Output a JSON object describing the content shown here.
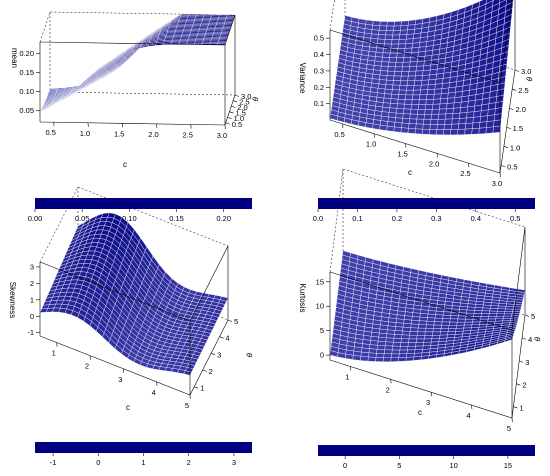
{
  "chart_data": [
    {
      "type": "surface3d",
      "zlabel": "mean",
      "xlabel": "c",
      "ylabel": "θ",
      "x_ticks": [
        "0.5",
        "1.0",
        "1.5",
        "2.0",
        "2.5",
        "3.0"
      ],
      "y_ticks": [
        "0.5",
        "1.0",
        "1.5",
        "2.0",
        "2.5",
        "3.0"
      ],
      "z_ticks": [
        "0.05",
        "0.10",
        "0.15",
        "0.20"
      ],
      "xlim": [
        0.3,
        3.0
      ],
      "ylim": [
        0.3,
        3.0
      ],
      "zlim": [
        0.02,
        0.23
      ],
      "colorbar_ticks": [
        "0.00",
        "0.05",
        "0.10",
        "0.15",
        "0.20"
      ],
      "colorbar_range": [
        0,
        0.23
      ],
      "color": "#000080"
    },
    {
      "type": "surface3d",
      "zlabel": "Variance",
      "xlabel": "c",
      "ylabel": "θ",
      "x_ticks": [
        "0.5",
        "1.0",
        "1.5",
        "2.0",
        "2.5",
        "3.0"
      ],
      "y_ticks": [
        "0.5",
        "1.0",
        "1.5",
        "2.0",
        "2.5",
        "3.0"
      ],
      "z_ticks": [
        "0.1",
        "0.2",
        "0.3",
        "0.4",
        "0.5"
      ],
      "xlim": [
        0.3,
        3.0
      ],
      "ylim": [
        0.3,
        3.0
      ],
      "zlim": [
        0.0,
        0.55
      ],
      "colorbar_ticks": [
        "0.0",
        "0.1",
        "0.2",
        "0.3",
        "0.4",
        "0.5"
      ],
      "colorbar_range": [
        0,
        0.55
      ],
      "color": "#000080"
    },
    {
      "type": "surface3d",
      "zlabel": "Skewness",
      "xlabel": "c",
      "ylabel": "θ",
      "x_ticks": [
        "1",
        "2",
        "3",
        "4",
        "5"
      ],
      "y_ticks": [
        "1",
        "2",
        "3",
        "4",
        "5"
      ],
      "z_ticks": [
        "-1",
        "0",
        "1",
        "2",
        "3"
      ],
      "xlim": [
        0.5,
        5
      ],
      "ylim": [
        0.5,
        5
      ],
      "zlim": [
        -1.2,
        3.3
      ],
      "colorbar_ticks": [
        "-1",
        "0",
        "1",
        "2",
        "3"
      ],
      "colorbar_range": [
        -1.4,
        3.4
      ],
      "color": "#000080"
    },
    {
      "type": "surface3d",
      "zlabel": "Kurtosis",
      "xlabel": "c",
      "ylabel": "θ",
      "x_ticks": [
        "1",
        "2",
        "3",
        "4",
        "5"
      ],
      "y_ticks": [
        "1",
        "2",
        "3",
        "4",
        "5"
      ],
      "z_ticks": [
        "0",
        "5",
        "10",
        "15"
      ],
      "xlim": [
        0.5,
        5
      ],
      "ylim": [
        0.5,
        5
      ],
      "zlim": [
        -1,
        17
      ],
      "colorbar_ticks": [
        "0",
        "5",
        "10",
        "15"
      ],
      "colorbar_range": [
        -2.5,
        17.5
      ],
      "color": "#000080"
    }
  ]
}
